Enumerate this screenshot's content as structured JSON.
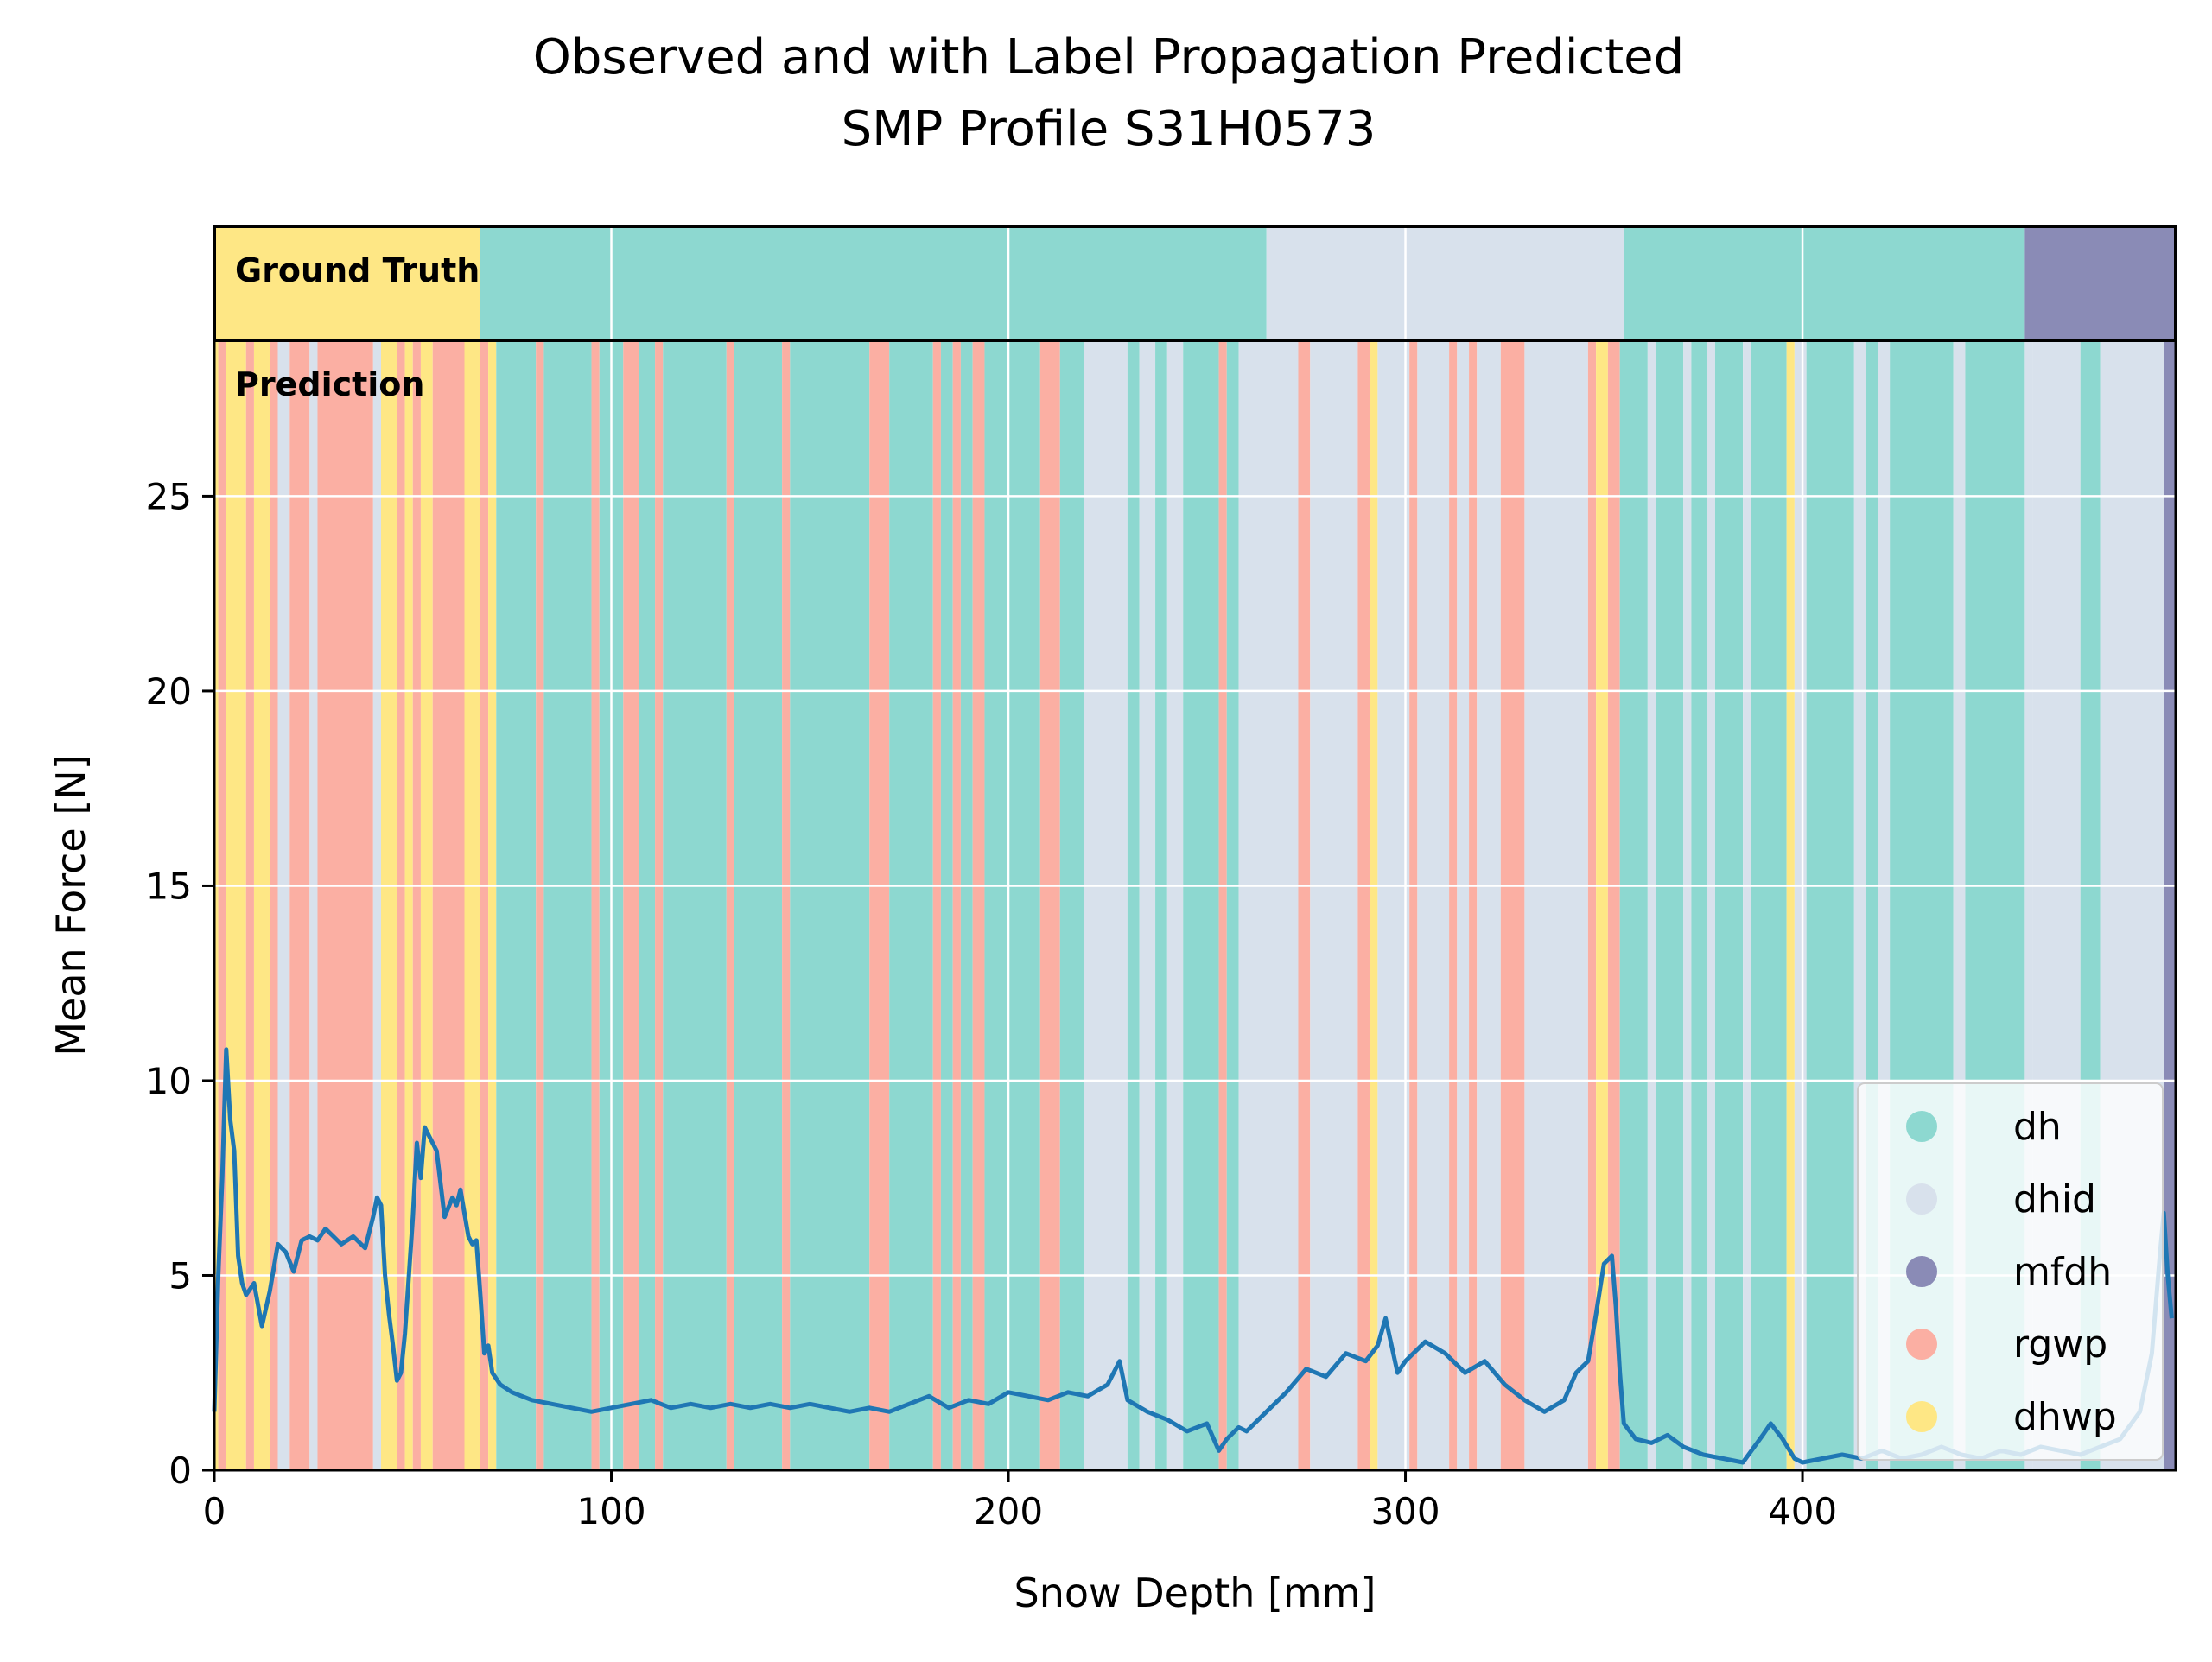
{
  "chart_data": {
    "type": "line",
    "title": "Observed and with Label Propagation Predicted",
    "subtitle": "SMP Profile S31H0573",
    "xlabel": "Snow Depth [mm]",
    "ylabel": "Mean Force [N]",
    "xlim": [
      0,
      494
    ],
    "ylim": [
      0,
      29
    ],
    "xticks": [
      0,
      100,
      200,
      300,
      400
    ],
    "yticks": [
      0,
      5,
      10,
      15,
      20,
      25
    ],
    "grid": true,
    "legend_position": "lower right",
    "band_labels": {
      "ground_truth": "Ground Truth",
      "prediction": "Prediction"
    },
    "classes": [
      {
        "name": "dh",
        "color": "#8dd8d0"
      },
      {
        "name": "dhid",
        "color": "#d8e1ec"
      },
      {
        "name": "mfdh",
        "color": "#8a8bb6"
      },
      {
        "name": "rgwp",
        "color": "#fbafa3"
      },
      {
        "name": "dhwp",
        "color": "#fee785"
      }
    ],
    "ground_truth_segments": [
      {
        "start": 0,
        "end": 67,
        "label": "dhwp"
      },
      {
        "start": 67,
        "end": 265,
        "label": "dh"
      },
      {
        "start": 265,
        "end": 355,
        "label": "dhid"
      },
      {
        "start": 355,
        "end": 456,
        "label": "dh"
      },
      {
        "start": 456,
        "end": 494,
        "label": "mfdh"
      }
    ],
    "prediction_segments": [
      {
        "start": 0,
        "end": 1,
        "label": "dhwp"
      },
      {
        "start": 1,
        "end": 3,
        "label": "rgwp"
      },
      {
        "start": 3,
        "end": 8,
        "label": "dhwp"
      },
      {
        "start": 8,
        "end": 10,
        "label": "rgwp"
      },
      {
        "start": 10,
        "end": 14,
        "label": "dhwp"
      },
      {
        "start": 14,
        "end": 16,
        "label": "rgwp"
      },
      {
        "start": 16,
        "end": 19,
        "label": "dhid"
      },
      {
        "start": 19,
        "end": 24,
        "label": "rgwp"
      },
      {
        "start": 24,
        "end": 26,
        "label": "dhid"
      },
      {
        "start": 26,
        "end": 40,
        "label": "rgwp"
      },
      {
        "start": 40,
        "end": 42,
        "label": "dhid"
      },
      {
        "start": 42,
        "end": 46,
        "label": "dhwp"
      },
      {
        "start": 46,
        "end": 48,
        "label": "rgwp"
      },
      {
        "start": 48,
        "end": 50,
        "label": "dhwp"
      },
      {
        "start": 50,
        "end": 52,
        "label": "rgwp"
      },
      {
        "start": 52,
        "end": 55,
        "label": "dhwp"
      },
      {
        "start": 55,
        "end": 63,
        "label": "rgwp"
      },
      {
        "start": 63,
        "end": 67,
        "label": "dhwp"
      },
      {
        "start": 67,
        "end": 69,
        "label": "rgwp"
      },
      {
        "start": 69,
        "end": 71,
        "label": "dhwp"
      },
      {
        "start": 71,
        "end": 81,
        "label": "dh"
      },
      {
        "start": 81,
        "end": 83,
        "label": "rgwp"
      },
      {
        "start": 83,
        "end": 95,
        "label": "dh"
      },
      {
        "start": 95,
        "end": 97,
        "label": "rgwp"
      },
      {
        "start": 97,
        "end": 103,
        "label": "dh"
      },
      {
        "start": 103,
        "end": 107,
        "label": "rgwp"
      },
      {
        "start": 107,
        "end": 111,
        "label": "dh"
      },
      {
        "start": 111,
        "end": 113,
        "label": "rgwp"
      },
      {
        "start": 113,
        "end": 129,
        "label": "dh"
      },
      {
        "start": 129,
        "end": 131,
        "label": "rgwp"
      },
      {
        "start": 131,
        "end": 143,
        "label": "dh"
      },
      {
        "start": 143,
        "end": 145,
        "label": "rgwp"
      },
      {
        "start": 145,
        "end": 165,
        "label": "dh"
      },
      {
        "start": 165,
        "end": 170,
        "label": "rgwp"
      },
      {
        "start": 170,
        "end": 181,
        "label": "dh"
      },
      {
        "start": 181,
        "end": 183,
        "label": "rgwp"
      },
      {
        "start": 183,
        "end": 186,
        "label": "dh"
      },
      {
        "start": 186,
        "end": 188,
        "label": "rgwp"
      },
      {
        "start": 188,
        "end": 191,
        "label": "dh"
      },
      {
        "start": 191,
        "end": 194,
        "label": "rgwp"
      },
      {
        "start": 194,
        "end": 208,
        "label": "dh"
      },
      {
        "start": 208,
        "end": 213,
        "label": "rgwp"
      },
      {
        "start": 213,
        "end": 219,
        "label": "dh"
      },
      {
        "start": 219,
        "end": 230,
        "label": "dhid"
      },
      {
        "start": 230,
        "end": 233,
        "label": "dh"
      },
      {
        "start": 233,
        "end": 237,
        "label": "dhid"
      },
      {
        "start": 237,
        "end": 240,
        "label": "dh"
      },
      {
        "start": 240,
        "end": 244,
        "label": "dhid"
      },
      {
        "start": 244,
        "end": 253,
        "label": "dh"
      },
      {
        "start": 253,
        "end": 255,
        "label": "rgwp"
      },
      {
        "start": 255,
        "end": 258,
        "label": "dh"
      },
      {
        "start": 258,
        "end": 273,
        "label": "dhid"
      },
      {
        "start": 273,
        "end": 276,
        "label": "rgwp"
      },
      {
        "start": 276,
        "end": 288,
        "label": "dhid"
      },
      {
        "start": 288,
        "end": 291,
        "label": "rgwp"
      },
      {
        "start": 291,
        "end": 293,
        "label": "dhwp"
      },
      {
        "start": 293,
        "end": 301,
        "label": "dhid"
      },
      {
        "start": 301,
        "end": 303,
        "label": "rgwp"
      },
      {
        "start": 303,
        "end": 311,
        "label": "dhid"
      },
      {
        "start": 311,
        "end": 313,
        "label": "rgwp"
      },
      {
        "start": 313,
        "end": 316,
        "label": "dhid"
      },
      {
        "start": 316,
        "end": 318,
        "label": "rgwp"
      },
      {
        "start": 318,
        "end": 324,
        "label": "dhid"
      },
      {
        "start": 324,
        "end": 330,
        "label": "rgwp"
      },
      {
        "start": 330,
        "end": 346,
        "label": "dhid"
      },
      {
        "start": 346,
        "end": 348,
        "label": "rgwp"
      },
      {
        "start": 348,
        "end": 351,
        "label": "dhwp"
      },
      {
        "start": 351,
        "end": 354,
        "label": "rgwp"
      },
      {
        "start": 354,
        "end": 361,
        "label": "dh"
      },
      {
        "start": 361,
        "end": 363,
        "label": "dhid"
      },
      {
        "start": 363,
        "end": 370,
        "label": "dh"
      },
      {
        "start": 370,
        "end": 372,
        "label": "dhid"
      },
      {
        "start": 372,
        "end": 376,
        "label": "dh"
      },
      {
        "start": 376,
        "end": 378,
        "label": "dhid"
      },
      {
        "start": 378,
        "end": 385,
        "label": "dh"
      },
      {
        "start": 385,
        "end": 387,
        "label": "dhid"
      },
      {
        "start": 387,
        "end": 396,
        "label": "dh"
      },
      {
        "start": 396,
        "end": 398,
        "label": "dhwp"
      },
      {
        "start": 398,
        "end": 401,
        "label": "dhid"
      },
      {
        "start": 401,
        "end": 413,
        "label": "dh"
      },
      {
        "start": 413,
        "end": 416,
        "label": "dhid"
      },
      {
        "start": 416,
        "end": 419,
        "label": "dh"
      },
      {
        "start": 419,
        "end": 422,
        "label": "dhid"
      },
      {
        "start": 422,
        "end": 438,
        "label": "dh"
      },
      {
        "start": 438,
        "end": 441,
        "label": "dhid"
      },
      {
        "start": 441,
        "end": 456,
        "label": "dh"
      },
      {
        "start": 456,
        "end": 458,
        "label": "dhid"
      },
      {
        "start": 458,
        "end": 470,
        "label": "dhid"
      },
      {
        "start": 470,
        "end": 475,
        "label": "dh"
      },
      {
        "start": 475,
        "end": 491,
        "label": "dhid"
      },
      {
        "start": 491,
        "end": 494,
        "label": "mfdh"
      }
    ],
    "series": [
      {
        "color": "#1f77b4",
        "x": [
          0,
          1,
          2,
          3,
          4,
          5,
          6,
          7,
          8,
          10,
          12,
          14,
          16,
          18,
          20,
          22,
          24,
          26,
          28,
          30,
          32,
          35,
          38,
          40,
          41,
          42,
          43,
          44,
          45,
          46,
          47,
          48,
          49,
          50,
          51,
          52,
          53,
          54,
          56,
          58,
          60,
          61,
          62,
          64,
          65,
          66,
          67,
          68,
          69,
          70,
          72,
          75,
          80,
          85,
          90,
          95,
          100,
          105,
          110,
          115,
          120,
          125,
          130,
          135,
          140,
          145,
          150,
          155,
          160,
          165,
          170,
          175,
          180,
          185,
          190,
          195,
          200,
          205,
          210,
          215,
          220,
          225,
          228,
          230,
          235,
          240,
          245,
          250,
          253,
          255,
          258,
          260,
          265,
          270,
          275,
          280,
          285,
          290,
          293,
          295,
          298,
          300,
          305,
          310,
          315,
          320,
          325,
          330,
          335,
          340,
          343,
          346,
          348,
          350,
          352,
          353,
          354,
          355,
          358,
          362,
          366,
          370,
          375,
          380,
          385,
          390,
          392,
          395,
          398,
          400,
          405,
          410,
          415,
          420,
          425,
          430,
          435,
          440,
          445,
          450,
          455,
          460,
          465,
          470,
          475,
          480,
          485,
          488,
          490,
          491,
          492,
          493
        ],
        "y": [
          1.5,
          5.0,
          7.5,
          10.8,
          9.0,
          8.2,
          5.5,
          4.8,
          4.5,
          4.8,
          3.7,
          4.6,
          5.8,
          5.6,
          5.1,
          5.9,
          6.0,
          5.9,
          6.2,
          6.0,
          5.8,
          6.0,
          5.7,
          6.5,
          7.0,
          6.8,
          5.0,
          4.0,
          3.2,
          2.3,
          2.5,
          3.5,
          5.0,
          6.5,
          8.4,
          7.5,
          8.8,
          8.6,
          8.2,
          6.5,
          7.0,
          6.8,
          7.2,
          6.0,
          5.8,
          5.9,
          4.5,
          3.0,
          3.2,
          2.5,
          2.2,
          2.0,
          1.8,
          1.7,
          1.6,
          1.5,
          1.6,
          1.7,
          1.8,
          1.6,
          1.7,
          1.6,
          1.7,
          1.6,
          1.7,
          1.6,
          1.7,
          1.6,
          1.5,
          1.6,
          1.5,
          1.7,
          1.9,
          1.6,
          1.8,
          1.7,
          2.0,
          1.9,
          1.8,
          2.0,
          1.9,
          2.2,
          2.8,
          1.8,
          1.5,
          1.3,
          1.0,
          1.2,
          0.5,
          0.8,
          1.1,
          1.0,
          1.5,
          2.0,
          2.6,
          2.4,
          3.0,
          2.8,
          3.2,
          3.9,
          2.5,
          2.8,
          3.3,
          3.0,
          2.5,
          2.8,
          2.2,
          1.8,
          1.5,
          1.8,
          2.5,
          2.8,
          4.0,
          5.3,
          5.5,
          4.2,
          2.5,
          1.2,
          0.8,
          0.7,
          0.9,
          0.6,
          0.4,
          0.3,
          0.2,
          0.9,
          1.2,
          0.8,
          0.3,
          0.2,
          0.3,
          0.4,
          0.3,
          0.5,
          0.3,
          0.4,
          0.6,
          0.4,
          0.3,
          0.5,
          0.4,
          0.6,
          0.5,
          0.4,
          0.6,
          0.8,
          1.5,
          3.0,
          5.5,
          6.6,
          5.0,
          3.9
        ]
      }
    ]
  }
}
